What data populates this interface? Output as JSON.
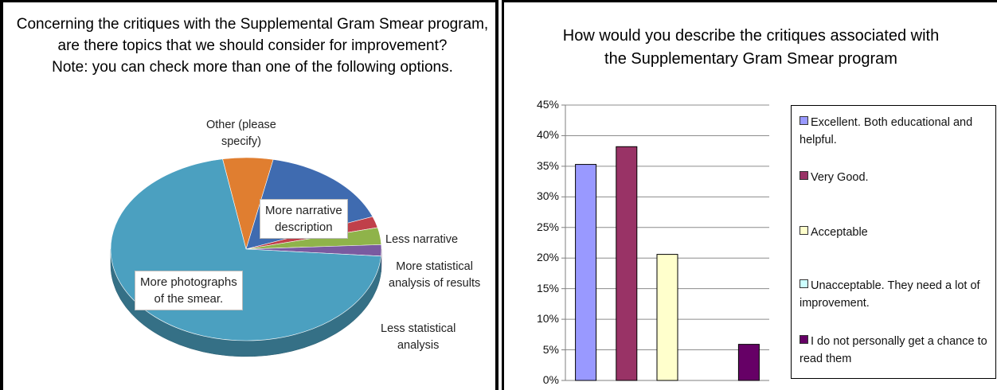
{
  "left_chart": {
    "title_lines": [
      "Concerning  the critiques  with the Supplemental  Gram Smear program,",
      "are there  topics  that we should  consider  for improvement?",
      "Note: you can check more than one of the following options."
    ],
    "chart_data": {
      "type": "pie",
      "title": "Concerning the critiques with the Supplemental Gram Smear program, are there topics that we should consider for improvement? Note: you can check more than one of the following options.",
      "slices": [
        {
          "label": "Other (please specify)",
          "value": 6,
          "color": "#E07E30"
        },
        {
          "label": "More narrative description",
          "value": 16,
          "color": "#3F6BB0"
        },
        {
          "label": "Less narrative",
          "value": 2,
          "color": "#C0404A"
        },
        {
          "label": "More statistical analysis of results",
          "value": 3,
          "color": "#8FB34A"
        },
        {
          "label": "Less statistical analysis",
          "value": 2,
          "color": "#7A5AA0"
        },
        {
          "label": "More photographs of the smear.",
          "value": 71,
          "color": "#4BA0C0"
        }
      ]
    },
    "labels": {
      "other": [
        "Other (please",
        "specify)"
      ],
      "more_narrative": [
        "More narrative",
        "description"
      ],
      "less_narrative": [
        "Less narrative"
      ],
      "more_stat": [
        "More statistical",
        "analysis of results"
      ],
      "less_stat": [
        "Less statistical",
        "analysis"
      ],
      "photos": [
        "More photographs",
        "of the smear."
      ]
    }
  },
  "right_chart": {
    "title_lines": [
      "How would  you describe the critiques associated with",
      "the Supplementary  Gram Smear program"
    ],
    "y_ticks": [
      "45%",
      "40%",
      "35%",
      "30%",
      "25%",
      "20%",
      "15%",
      "10%",
      "5%",
      "0%"
    ],
    "chart_data": {
      "type": "bar",
      "title": "How would you describe the critiques associated with the Supplementary Gram Smear program",
      "categories": [
        "Excellent.  Both educational and helpful.",
        "Very Good.",
        "Acceptable",
        "Unacceptable.  They need a lot of improvement.",
        "I do not personally get a chance to read them"
      ],
      "values": [
        35.3,
        38.2,
        20.6,
        0,
        5.9
      ],
      "colors": [
        "#9999FF",
        "#993366",
        "#FFFFCC",
        "#CCFFFF",
        "#660066"
      ],
      "ylim": [
        0,
        45
      ],
      "y_unit": "%",
      "grid": true,
      "legend": "right"
    },
    "legend": [
      {
        "lines": [
          "Excellent.  Both educational and",
          "helpful."
        ]
      },
      {
        "lines": [
          "Very Good."
        ]
      },
      {
        "lines": [
          "Acceptable"
        ]
      },
      {
        "lines": [
          "Unacceptable.  They need a lot of",
          "improvement."
        ]
      },
      {
        "lines": [
          "I do not personally get a chance to",
          "read them"
        ]
      }
    ]
  }
}
